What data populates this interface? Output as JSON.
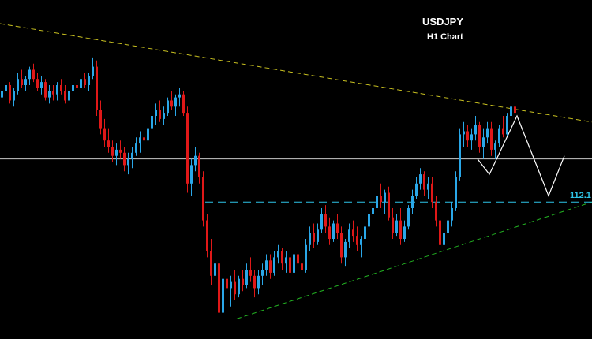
{
  "title": "USDJPY",
  "subtitle": "H1 Chart",
  "level_label": "112.1",
  "colors": {
    "background": "#000000",
    "bull": "#2aa7e8",
    "bear": "#e01818",
    "resistance": "#c8c020",
    "support": "#22b022",
    "level": "#2ec4e8",
    "current": "#c8c8c8",
    "projection": "#ffffff"
  },
  "chart_data": {
    "type": "candlestick",
    "title": "USDJPY",
    "subtitle": "H1 Chart",
    "ylim": [
      0,
      100
    ],
    "xlim": [
      0,
      150
    ],
    "grid": false,
    "candles": [
      [
        76,
        80,
        72,
        78
      ],
      [
        78,
        82,
        76,
        80
      ],
      [
        80,
        81,
        74,
        75
      ],
      [
        75,
        79,
        73,
        78
      ],
      [
        78,
        84,
        77,
        82
      ],
      [
        82,
        85,
        79,
        80
      ],
      [
        80,
        83,
        78,
        82
      ],
      [
        82,
        86,
        80,
        85
      ],
      [
        85,
        87,
        81,
        82
      ],
      [
        82,
        84,
        78,
        79
      ],
      [
        79,
        83,
        77,
        81
      ],
      [
        81,
        82,
        75,
        76
      ],
      [
        76,
        80,
        74,
        78
      ],
      [
        78,
        80,
        75,
        77
      ],
      [
        77,
        81,
        75,
        80
      ],
      [
        80,
        82,
        77,
        78
      ],
      [
        78,
        80,
        74,
        75
      ],
      [
        75,
        79,
        73,
        78
      ],
      [
        78,
        81,
        76,
        80
      ],
      [
        80,
        82,
        77,
        79
      ],
      [
        79,
        83,
        78,
        82
      ],
      [
        82,
        84,
        79,
        80
      ],
      [
        80,
        84,
        78,
        83
      ],
      [
        83,
        89,
        82,
        86
      ],
      [
        86,
        88,
        70,
        72
      ],
      [
        72,
        75,
        64,
        66
      ],
      [
        66,
        69,
        60,
        62
      ],
      [
        62,
        66,
        58,
        60
      ],
      [
        60,
        62,
        55,
        57
      ],
      [
        57,
        61,
        54,
        59
      ],
      [
        59,
        62,
        56,
        58
      ],
      [
        58,
        60,
        52,
        54
      ],
      [
        54,
        58,
        51,
        56
      ],
      [
        56,
        60,
        53,
        58
      ],
      [
        58,
        63,
        57,
        61
      ],
      [
        61,
        65,
        58,
        63
      ],
      [
        63,
        66,
        60,
        62
      ],
      [
        62,
        68,
        61,
        66
      ],
      [
        66,
        72,
        64,
        70
      ],
      [
        70,
        74,
        67,
        72
      ],
      [
        72,
        75,
        68,
        69
      ],
      [
        69,
        73,
        67,
        71
      ],
      [
        71,
        76,
        70,
        75
      ],
      [
        75,
        78,
        72,
        73
      ],
      [
        73,
        77,
        70,
        76
      ],
      [
        76,
        79,
        73,
        77
      ],
      [
        77,
        78,
        70,
        71
      ],
      [
        71,
        73,
        45,
        48
      ],
      [
        48,
        56,
        44,
        54
      ],
      [
        54,
        60,
        52,
        57
      ],
      [
        57,
        58,
        48,
        50
      ],
      [
        50,
        52,
        34,
        36
      ],
      [
        36,
        38,
        24,
        26
      ],
      [
        26,
        30,
        15,
        18
      ],
      [
        18,
        24,
        14,
        22
      ],
      [
        22,
        24,
        4,
        6
      ],
      [
        6,
        20,
        5,
        17
      ],
      [
        17,
        22,
        12,
        14
      ],
      [
        14,
        18,
        8,
        16
      ],
      [
        16,
        20,
        10,
        12
      ],
      [
        12,
        18,
        11,
        17
      ],
      [
        17,
        20,
        13,
        15
      ],
      [
        15,
        22,
        14,
        20
      ],
      [
        20,
        24,
        16,
        18
      ],
      [
        18,
        20,
        11,
        14
      ],
      [
        14,
        20,
        12,
        18
      ],
      [
        18,
        22,
        15,
        20
      ],
      [
        20,
        25,
        18,
        23
      ],
      [
        23,
        25,
        17,
        19
      ],
      [
        19,
        26,
        18,
        24
      ],
      [
        24,
        28,
        22,
        26
      ],
      [
        26,
        27,
        20,
        22
      ],
      [
        22,
        26,
        19,
        24
      ],
      [
        24,
        25,
        17,
        19
      ],
      [
        19,
        27,
        18,
        25
      ],
      [
        25,
        28,
        20,
        22
      ],
      [
        22,
        26,
        18,
        20
      ],
      [
        20,
        30,
        19,
        28
      ],
      [
        28,
        34,
        26,
        32
      ],
      [
        32,
        35,
        27,
        29
      ],
      [
        29,
        35,
        28,
        33
      ],
      [
        33,
        40,
        32,
        38
      ],
      [
        38,
        41,
        32,
        34
      ],
      [
        34,
        37,
        28,
        30
      ],
      [
        30,
        36,
        29,
        35
      ],
      [
        35,
        38,
        30,
        32
      ],
      [
        32,
        34,
        22,
        24
      ],
      [
        24,
        30,
        21,
        29
      ],
      [
        29,
        35,
        27,
        33
      ],
      [
        33,
        36,
        29,
        31
      ],
      [
        31,
        34,
        26,
        28
      ],
      [
        28,
        31,
        24,
        30
      ],
      [
        30,
        36,
        29,
        34
      ],
      [
        34,
        40,
        33,
        38
      ],
      [
        38,
        42,
        36,
        40
      ],
      [
        40,
        46,
        38,
        44
      ],
      [
        44,
        48,
        40,
        42
      ],
      [
        42,
        46,
        38,
        45
      ],
      [
        45,
        47,
        36,
        37
      ],
      [
        37,
        40,
        30,
        32
      ],
      [
        32,
        38,
        31,
        36
      ],
      [
        36,
        40,
        28,
        30
      ],
      [
        30,
        36,
        29,
        34
      ],
      [
        34,
        41,
        33,
        40
      ],
      [
        40,
        46,
        38,
        44
      ],
      [
        44,
        50,
        43,
        48
      ],
      [
        48,
        53,
        46,
        51
      ],
      [
        51,
        52,
        44,
        46
      ],
      [
        46,
        50,
        43,
        48
      ],
      [
        48,
        50,
        40,
        42
      ],
      [
        42,
        44,
        34,
        36
      ],
      [
        36,
        40,
        24,
        28
      ],
      [
        28,
        34,
        26,
        32
      ],
      [
        32,
        38,
        30,
        36
      ],
      [
        36,
        42,
        34,
        40
      ],
      [
        40,
        52,
        39,
        50
      ],
      [
        50,
        66,
        49,
        64
      ],
      [
        64,
        68,
        60,
        65
      ],
      [
        65,
        67,
        60,
        62
      ],
      [
        62,
        66,
        59,
        64
      ],
      [
        64,
        70,
        62,
        67
      ],
      [
        67,
        68,
        58,
        60
      ],
      [
        60,
        66,
        56,
        63
      ],
      [
        63,
        68,
        61,
        66
      ],
      [
        66,
        68,
        57,
        59
      ],
      [
        59,
        62,
        56,
        61
      ],
      [
        61,
        67,
        60,
        66
      ],
      [
        66,
        70,
        63,
        64
      ],
      [
        64,
        71,
        63,
        70
      ],
      [
        70,
        74,
        68,
        73
      ],
      [
        73,
        74,
        70,
        71
      ]
    ],
    "lines": [
      {
        "kind": "resistance-trendline",
        "from": [
          0,
          100
        ],
        "to": [
          150,
          68
        ]
      },
      {
        "kind": "support-trendline",
        "from": [
          60,
          4
        ],
        "to": [
          150,
          42
        ]
      },
      {
        "kind": "horizontal-level",
        "label": "112.1",
        "y": 42,
        "x_from": 52
      },
      {
        "kind": "current-price",
        "y": 56
      },
      {
        "kind": "projection",
        "points": [
          [
            121,
            56
          ],
          [
            124,
            51
          ],
          [
            131,
            70
          ],
          [
            139,
            44
          ],
          [
            143,
            57
          ]
        ]
      }
    ]
  }
}
